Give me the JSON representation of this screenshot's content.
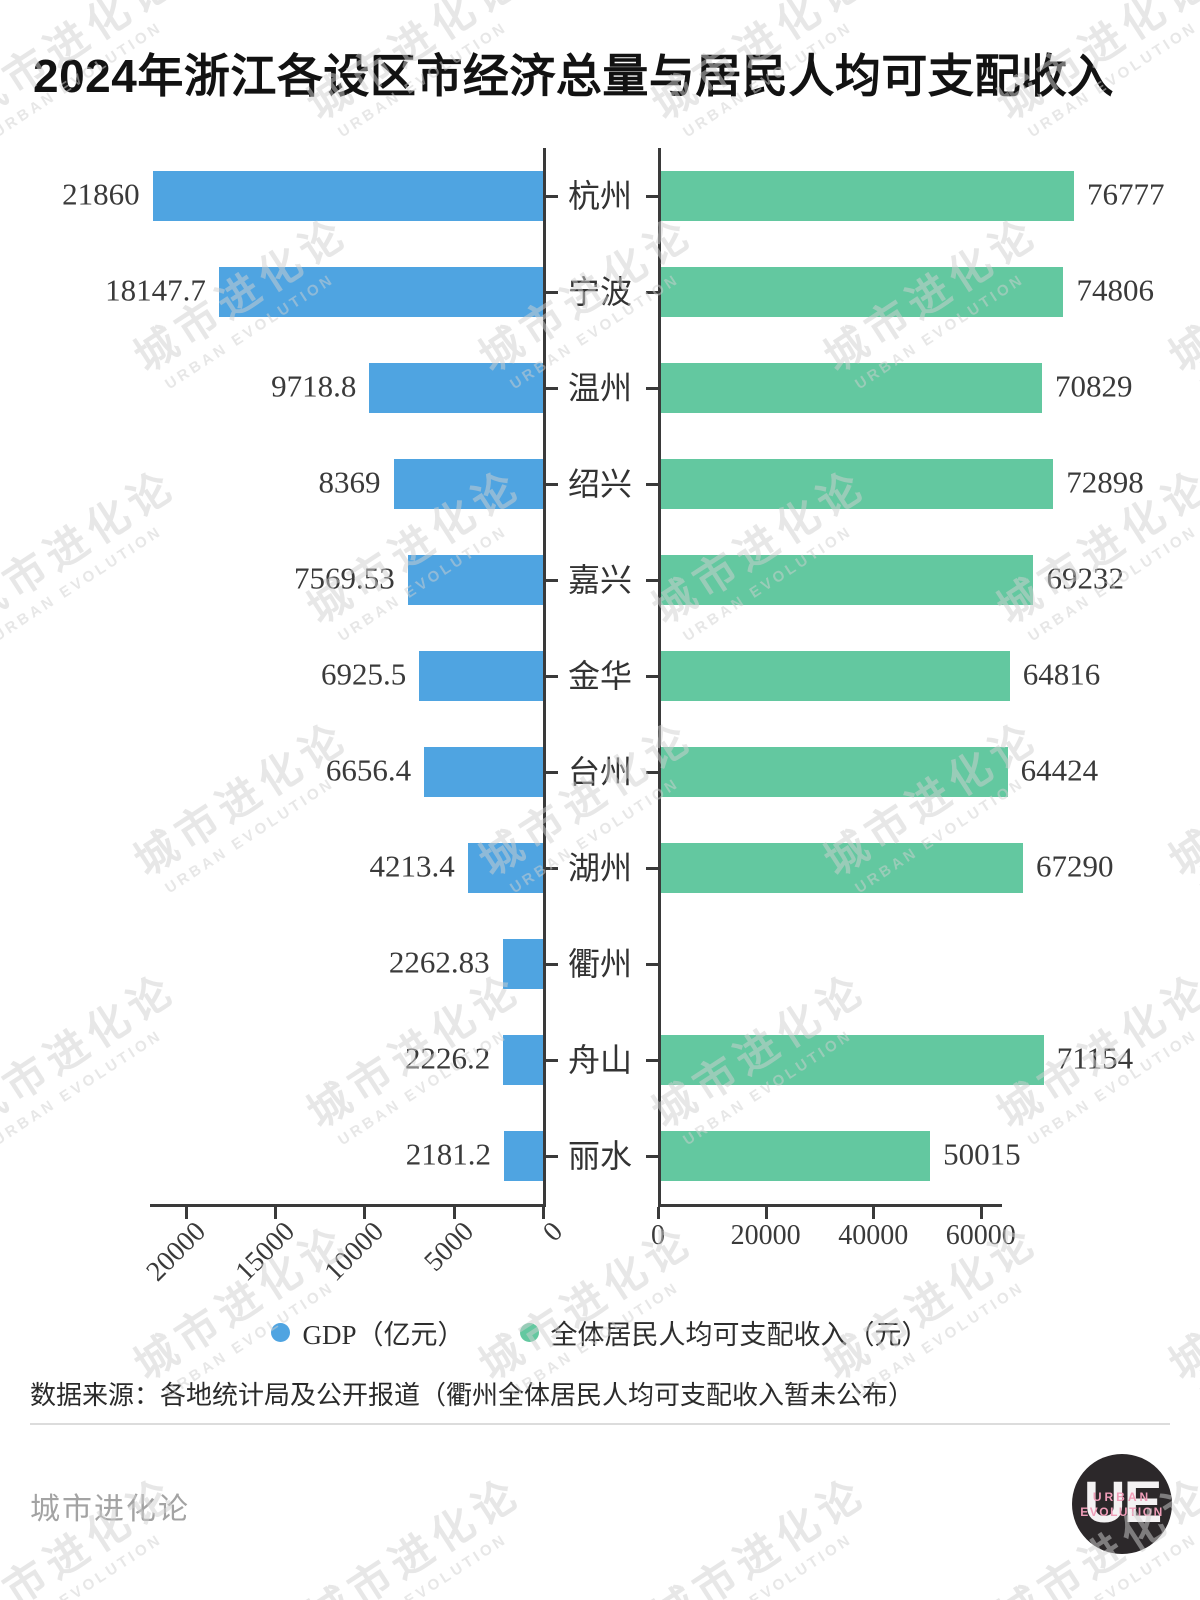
{
  "title": "2024年浙江各设区市经济总量与居民人均可支配收入",
  "chart_data": {
    "type": "bar",
    "orientation": "horizontal-diverging",
    "categories": [
      "杭州",
      "宁波",
      "温州",
      "绍兴",
      "嘉兴",
      "金华",
      "台州",
      "湖州",
      "衢州",
      "舟山",
      "丽水"
    ],
    "series": [
      {
        "name": "GDP（亿元）",
        "side": "left",
        "color": "#4FA4E1",
        "values": [
          21860,
          18147.7,
          9718.8,
          8369,
          7569.53,
          6925.5,
          6656.4,
          4213.4,
          2262.83,
          2226.2,
          2181.2
        ],
        "axis_ticks": [
          20000,
          15000,
          10000,
          5000,
          0
        ],
        "axis_range": [
          0,
          21900
        ],
        "axis_direction": "right-to-left"
      },
      {
        "name": "全体居民人均可支配收入（元）",
        "side": "right",
        "color": "#63C8A0",
        "values": [
          76777,
          74806,
          70829,
          72898,
          69232,
          64816,
          64424,
          67290,
          null,
          71154,
          50015
        ],
        "axis_ticks": [
          0,
          20000,
          40000,
          60000
        ],
        "axis_range": [
          0,
          77000
        ],
        "axis_direction": "left-to-right"
      }
    ],
    "grid": false,
    "legend_position": "bottom-center"
  },
  "legend": [
    {
      "label": "GDP（亿元）",
      "color": "#4FA4E1"
    },
    {
      "label": "全体居民人均可支配收入（元）",
      "color": "#63C8A0"
    }
  ],
  "footer": {
    "source": "数据来源：各地统计局及公开报道（衢州全体居民人均可支配收入暂未公布）",
    "brand": "城市进化论"
  },
  "logo": {
    "letters": "UE",
    "line1": "URBAN",
    "line2": "EVOLUTION"
  },
  "watermark": {
    "line1": "城市进化论",
    "line2": "URBAN EVOLUTION"
  }
}
